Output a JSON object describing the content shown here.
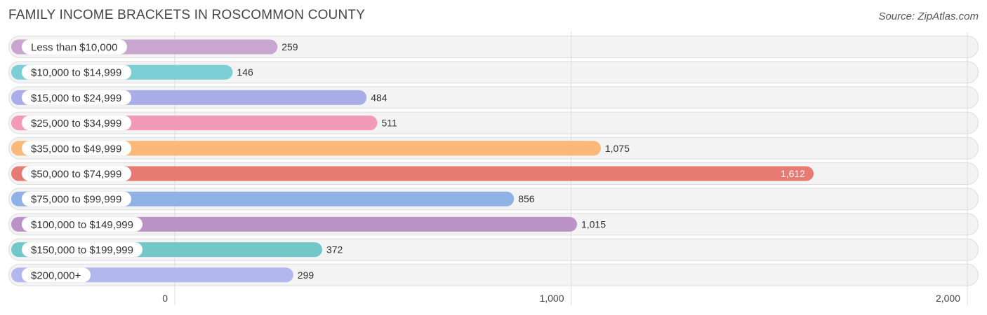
{
  "header": {
    "title": "FAMILY INCOME BRACKETS IN ROSCOMMON COUNTY",
    "source": "Source: ZipAtlas.com"
  },
  "chart_data": {
    "type": "bar",
    "orientation": "horizontal",
    "title": "FAMILY INCOME BRACKETS IN ROSCOMMON COUNTY",
    "source": "Source: ZipAtlas.com",
    "categories": [
      "Less than $10,000",
      "$10,000 to $14,999",
      "$15,000 to $24,999",
      "$25,000 to $34,999",
      "$35,000 to $49,999",
      "$50,000 to $74,999",
      "$75,000 to $99,999",
      "$100,000 to $149,999",
      "$150,000 to $199,999",
      "$200,000+"
    ],
    "values": [
      259,
      146,
      484,
      511,
      1075,
      1612,
      856,
      1015,
      372,
      299
    ],
    "value_labels": [
      "259",
      "146",
      "484",
      "511",
      "1,075",
      "1,612",
      "856",
      "1,015",
      "372",
      "299"
    ],
    "colors": [
      "#c9a6d0",
      "#7ccfd4",
      "#a9aee8",
      "#f39ab9",
      "#fbb878",
      "#e87a74",
      "#8fb2e6",
      "#bb92c6",
      "#72c7c9",
      "#b2b8ee"
    ],
    "xlim": [
      0,
      2000
    ],
    "xticks": [
      0,
      1000,
      2000
    ],
    "xtick_labels": [
      "0",
      "1,000",
      "2,000"
    ],
    "xlabel": "",
    "ylabel": "",
    "grid": true
  }
}
